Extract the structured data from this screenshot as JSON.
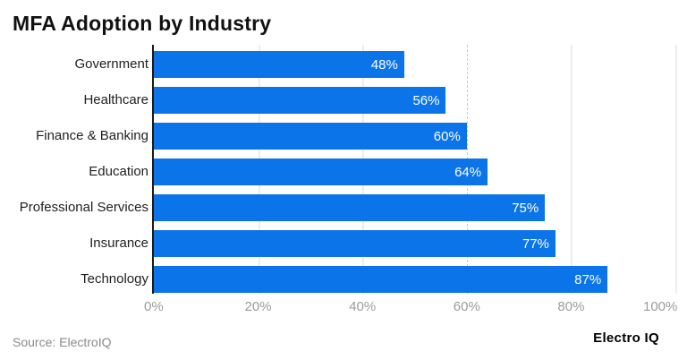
{
  "title": "MFA Adoption by Industry",
  "chart_data": {
    "type": "bar",
    "orientation": "horizontal",
    "title": "MFA Adoption by Industry",
    "categories": [
      "Government",
      "Healthcare",
      "Finance & Banking",
      "Education",
      "Professional Services",
      "Insurance",
      "Technology"
    ],
    "values": [
      48,
      56,
      60,
      64,
      75,
      77,
      87
    ],
    "value_labels": [
      "48%",
      "56%",
      "60%",
      "64%",
      "75%",
      "77%",
      "87%"
    ],
    "xlabel": "",
    "ylabel": "",
    "xlim": [
      0,
      100
    ],
    "x_ticks": [
      0,
      20,
      40,
      60,
      80,
      100
    ],
    "x_tick_labels": [
      "0%",
      "20%",
      "40%",
      "60%",
      "80%",
      "100%"
    ],
    "grid": true,
    "legend": false,
    "dashed_gridline_at": 60,
    "bar_color": "#0b74e8"
  },
  "colors": {
    "bar": "#0b74e8",
    "axis_line": "#1a1a1a",
    "gridline": "#ededed",
    "dashed_gridline": "#c9c9c9",
    "value_text": "#ffffff",
    "category_text": "#1f1f1f",
    "tick_text": "#9b9b9b",
    "title_text": "#111111",
    "source_text": "#8a8a8a",
    "brand_text": "#000000"
  },
  "footer": {
    "source_label": "Source: ElectroIQ",
    "brand_label": "Electro IQ"
  }
}
